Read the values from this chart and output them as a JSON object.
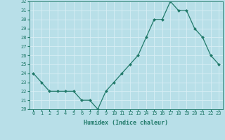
{
  "x": [
    0,
    1,
    2,
    3,
    4,
    5,
    6,
    7,
    8,
    9,
    10,
    11,
    12,
    13,
    14,
    15,
    16,
    17,
    18,
    19,
    20,
    21,
    22,
    23
  ],
  "y": [
    24,
    23,
    22,
    22,
    22,
    22,
    21,
    21,
    20,
    22,
    23,
    24,
    25,
    26,
    28,
    30,
    30,
    32,
    31,
    31,
    29,
    28,
    26,
    25
  ],
  "xlabel": "Humidex (Indice chaleur)",
  "ylim": [
    20,
    32
  ],
  "xlim": [
    -0.5,
    23.5
  ],
  "yticks": [
    20,
    21,
    22,
    23,
    24,
    25,
    26,
    27,
    28,
    29,
    30,
    31,
    32
  ],
  "xticks": [
    0,
    1,
    2,
    3,
    4,
    5,
    6,
    7,
    8,
    9,
    10,
    11,
    12,
    13,
    14,
    15,
    16,
    17,
    18,
    19,
    20,
    21,
    22,
    23
  ],
  "line_color": "#217a6a",
  "marker_color": "#217a6a",
  "bg_color": "#b8dfe8",
  "grid_color": "#d8eef5",
  "tick_color": "#217a6a",
  "label_color": "#217a6a",
  "xlabel_fontsize": 6.0,
  "tick_fontsize": 5.0,
  "linewidth": 0.9,
  "markersize": 2.0,
  "figsize": [
    3.2,
    2.0
  ],
  "dpi": 100
}
